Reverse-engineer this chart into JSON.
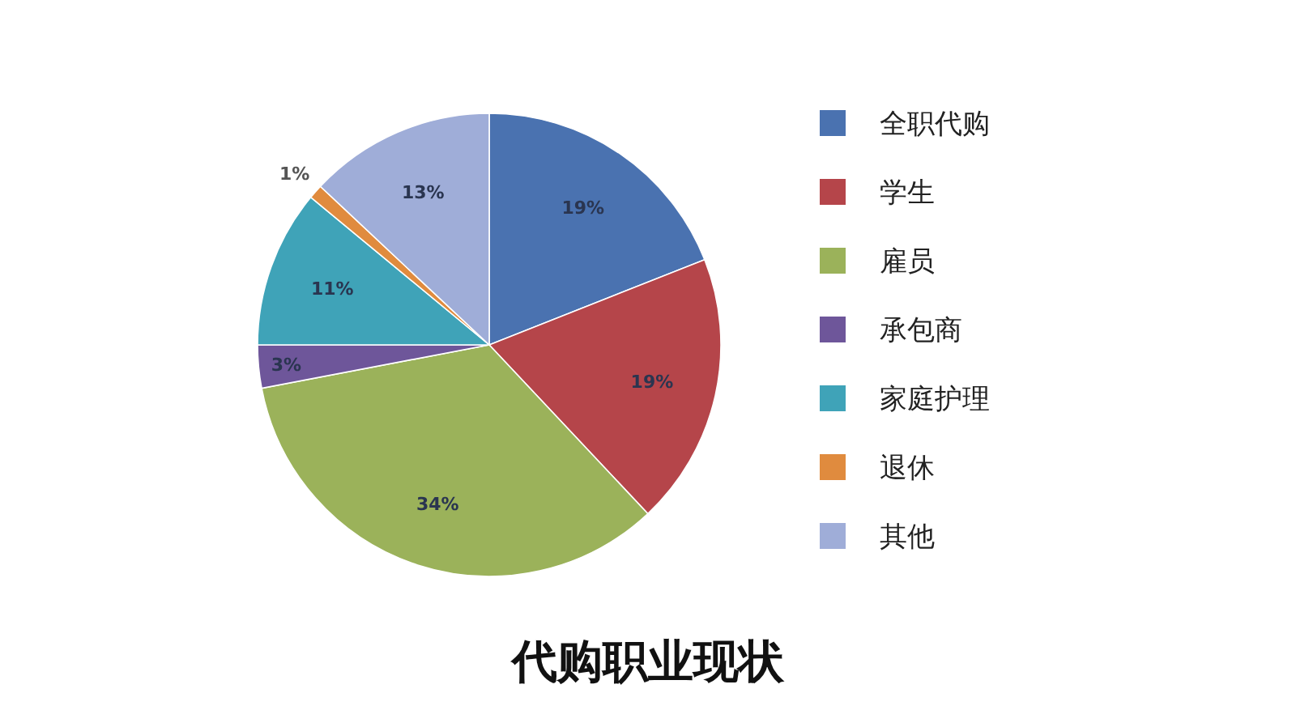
{
  "chart_data": {
    "type": "pie",
    "title": "代购职业现状",
    "categories": [
      "全职代购",
      "学生",
      "雇员",
      "承包商",
      "家庭护理",
      "退休",
      "其他"
    ],
    "values": [
      19,
      19,
      34,
      3,
      11,
      1,
      13
    ],
    "colors": [
      "#4a72b0",
      "#b5454a",
      "#9bb25a",
      "#6e569a",
      "#3fa3b8",
      "#e08b3e",
      "#9fadd8"
    ],
    "value_labels": [
      "19%",
      "19%",
      "34%",
      "3%",
      "11%",
      "1%",
      "13%"
    ],
    "legend": "right"
  }
}
